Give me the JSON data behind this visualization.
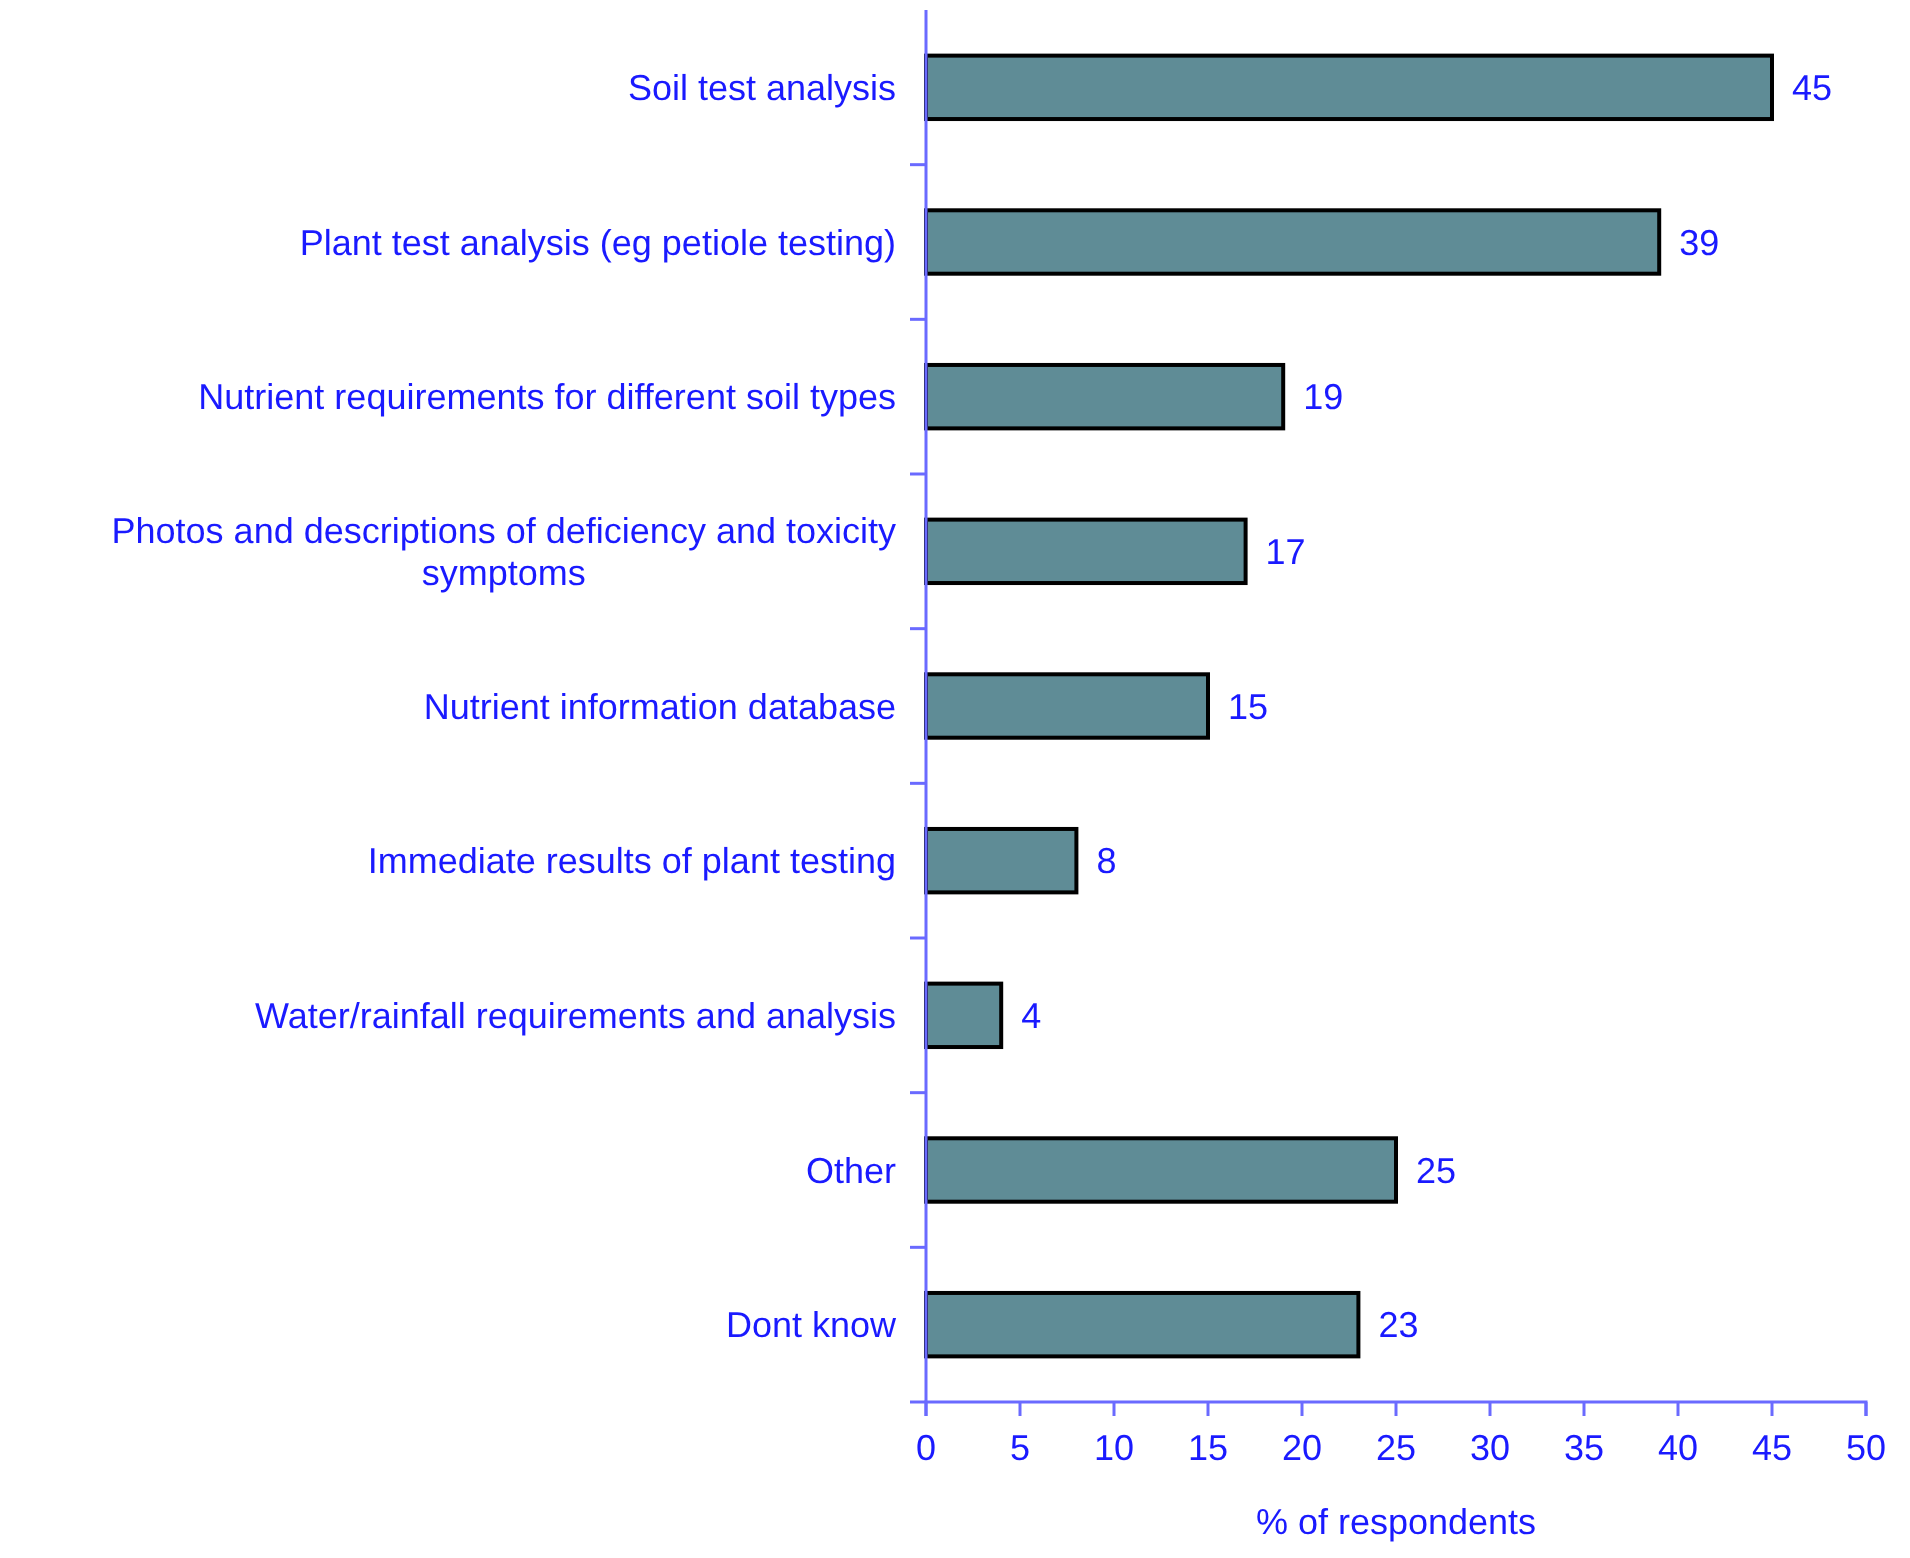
{
  "chart_data": {
    "type": "bar",
    "orientation": "horizontal",
    "categories": [
      "Soil test analysis",
      "Plant test analysis (eg petiole testing)",
      "Nutrient requirements for different soil types",
      "Photos and descriptions of deficiency and toxicity symptoms",
      "Nutrient information database",
      "Immediate results of plant testing",
      "Water/rainfall requirements and analysis",
      "Other",
      "Dont know"
    ],
    "values": [
      45,
      39,
      19,
      17,
      15,
      8,
      4,
      25,
      23
    ],
    "color": "#5f8c96",
    "xlabel": "% of respondents",
    "xlim": [
      0,
      50
    ],
    "xticks": [
      0,
      5,
      10,
      15,
      20,
      25,
      30,
      35,
      40,
      45,
      50
    ],
    "data_labels": true
  }
}
